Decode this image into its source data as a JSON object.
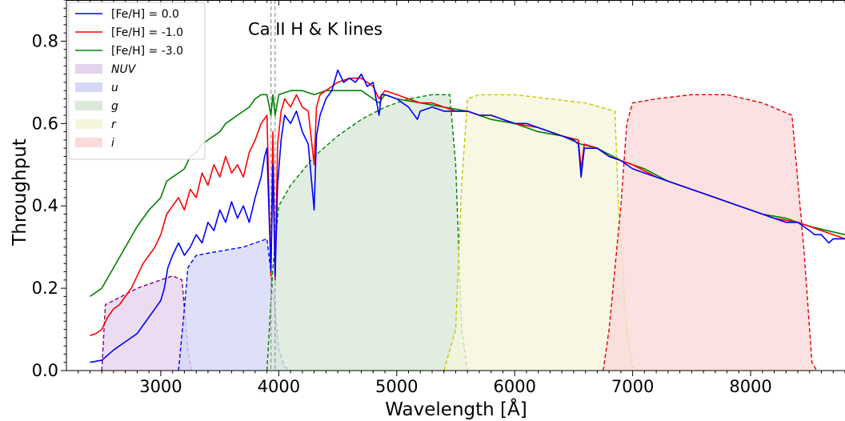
{
  "chart_data": {
    "type": "line",
    "xlabel": "Wavelength [Å]",
    "ylabel": "Throughput",
    "xlim": [
      2200,
      8800
    ],
    "ylim": [
      0.0,
      0.9
    ],
    "x_ticks": [
      "3000",
      "4000",
      "5000",
      "6000",
      "7000",
      "8000"
    ],
    "y_ticks": [
      "0.0",
      "0.2",
      "0.4",
      "0.6",
      "0.8"
    ],
    "grid": false,
    "legend_position": "top-left",
    "annotations": [
      {
        "text": "Ca II H & K lines",
        "x": 4300,
        "y": 0.815
      }
    ],
    "vlines": [
      3934,
      3969
    ],
    "series": [
      {
        "name": "[Fe/H] =  0.0",
        "color": "#0000ff",
        "points": [
          [
            2400,
            0.02
          ],
          [
            2500,
            0.025
          ],
          [
            2600,
            0.05
          ],
          [
            2700,
            0.07
          ],
          [
            2800,
            0.09
          ],
          [
            2850,
            0.11
          ],
          [
            2900,
            0.13
          ],
          [
            2950,
            0.15
          ],
          [
            3000,
            0.17
          ],
          [
            3030,
            0.2
          ],
          [
            3060,
            0.25
          ],
          [
            3100,
            0.28
          ],
          [
            3150,
            0.31
          ],
          [
            3200,
            0.28
          ],
          [
            3250,
            0.3
          ],
          [
            3300,
            0.33
          ],
          [
            3350,
            0.31
          ],
          [
            3400,
            0.36
          ],
          [
            3450,
            0.34
          ],
          [
            3500,
            0.39
          ],
          [
            3550,
            0.36
          ],
          [
            3600,
            0.41
          ],
          [
            3650,
            0.37
          ],
          [
            3700,
            0.4
          ],
          [
            3750,
            0.36
          ],
          [
            3800,
            0.42
          ],
          [
            3850,
            0.47
          ],
          [
            3880,
            0.52
          ],
          [
            3900,
            0.54
          ],
          [
            3934,
            0.24
          ],
          [
            3950,
            0.5
          ],
          [
            3969,
            0.23
          ],
          [
            3990,
            0.45
          ],
          [
            4020,
            0.56
          ],
          [
            4050,
            0.62
          ],
          [
            4100,
            0.6
          ],
          [
            4150,
            0.63
          ],
          [
            4200,
            0.58
          ],
          [
            4250,
            0.55
          ],
          [
            4300,
            0.39
          ],
          [
            4320,
            0.57
          ],
          [
            4350,
            0.62
          ],
          [
            4400,
            0.66
          ],
          [
            4450,
            0.68
          ],
          [
            4500,
            0.73
          ],
          [
            4550,
            0.7
          ],
          [
            4600,
            0.71
          ],
          [
            4650,
            0.7
          ],
          [
            4700,
            0.72
          ],
          [
            4750,
            0.69
          ],
          [
            4800,
            0.7
          ],
          [
            4850,
            0.62
          ],
          [
            4870,
            0.67
          ],
          [
            4900,
            0.67
          ],
          [
            5000,
            0.66
          ],
          [
            5100,
            0.64
          ],
          [
            5175,
            0.61
          ],
          [
            5200,
            0.63
          ],
          [
            5300,
            0.64
          ],
          [
            5400,
            0.63
          ],
          [
            5500,
            0.63
          ],
          [
            5600,
            0.63
          ],
          [
            5700,
            0.62
          ],
          [
            5800,
            0.62
          ],
          [
            5900,
            0.61
          ],
          [
            6000,
            0.6
          ],
          [
            6100,
            0.6
          ],
          [
            6200,
            0.59
          ],
          [
            6300,
            0.58
          ],
          [
            6400,
            0.57
          ],
          [
            6500,
            0.56
          ],
          [
            6540,
            0.55
          ],
          [
            6563,
            0.47
          ],
          [
            6590,
            0.54
          ],
          [
            6700,
            0.54
          ],
          [
            6800,
            0.52
          ],
          [
            6900,
            0.51
          ],
          [
            7000,
            0.49
          ],
          [
            7100,
            0.48
          ],
          [
            7200,
            0.47
          ],
          [
            7300,
            0.46
          ],
          [
            7400,
            0.45
          ],
          [
            7500,
            0.44
          ],
          [
            7600,
            0.43
          ],
          [
            7700,
            0.42
          ],
          [
            7800,
            0.41
          ],
          [
            7900,
            0.4
          ],
          [
            8000,
            0.39
          ],
          [
            8100,
            0.38
          ],
          [
            8200,
            0.37
          ],
          [
            8300,
            0.36
          ],
          [
            8400,
            0.36
          ],
          [
            8500,
            0.34
          ],
          [
            8542,
            0.33
          ],
          [
            8600,
            0.33
          ],
          [
            8662,
            0.31
          ],
          [
            8700,
            0.32
          ],
          [
            8800,
            0.32
          ]
        ]
      },
      {
        "name": "[Fe/H] = -1.0",
        "color": "#ff0000",
        "points": [
          [
            2400,
            0.085
          ],
          [
            2450,
            0.09
          ],
          [
            2500,
            0.1
          ],
          [
            2550,
            0.13
          ],
          [
            2600,
            0.15
          ],
          [
            2650,
            0.16
          ],
          [
            2700,
            0.18
          ],
          [
            2750,
            0.2
          ],
          [
            2800,
            0.23
          ],
          [
            2850,
            0.26
          ],
          [
            2900,
            0.28
          ],
          [
            2950,
            0.3
          ],
          [
            3000,
            0.33
          ],
          [
            3050,
            0.38
          ],
          [
            3100,
            0.4
          ],
          [
            3150,
            0.42
          ],
          [
            3200,
            0.39
          ],
          [
            3250,
            0.44
          ],
          [
            3300,
            0.42
          ],
          [
            3350,
            0.48
          ],
          [
            3400,
            0.45
          ],
          [
            3450,
            0.5
          ],
          [
            3500,
            0.47
          ],
          [
            3550,
            0.52
          ],
          [
            3600,
            0.48
          ],
          [
            3650,
            0.5
          ],
          [
            3700,
            0.47
          ],
          [
            3750,
            0.53
          ],
          [
            3800,
            0.56
          ],
          [
            3850,
            0.6
          ],
          [
            3900,
            0.62
          ],
          [
            3934,
            0.23
          ],
          [
            3950,
            0.58
          ],
          [
            3969,
            0.22
          ],
          [
            3990,
            0.55
          ],
          [
            4020,
            0.63
          ],
          [
            4050,
            0.66
          ],
          [
            4100,
            0.64
          ],
          [
            4150,
            0.67
          ],
          [
            4200,
            0.64
          ],
          [
            4250,
            0.63
          ],
          [
            4300,
            0.5
          ],
          [
            4320,
            0.64
          ],
          [
            4350,
            0.67
          ],
          [
            4400,
            0.68
          ],
          [
            4500,
            0.7
          ],
          [
            4600,
            0.71
          ],
          [
            4700,
            0.71
          ],
          [
            4800,
            0.69
          ],
          [
            4850,
            0.66
          ],
          [
            4900,
            0.68
          ],
          [
            5000,
            0.67
          ],
          [
            5100,
            0.66
          ],
          [
            5200,
            0.65
          ],
          [
            5300,
            0.65
          ],
          [
            5400,
            0.64
          ],
          [
            5500,
            0.63
          ],
          [
            5600,
            0.63
          ],
          [
            5700,
            0.62
          ],
          [
            5800,
            0.62
          ],
          [
            5900,
            0.61
          ],
          [
            6000,
            0.6
          ],
          [
            6200,
            0.59
          ],
          [
            6400,
            0.57
          ],
          [
            6540,
            0.56
          ],
          [
            6563,
            0.49
          ],
          [
            6590,
            0.55
          ],
          [
            6700,
            0.54
          ],
          [
            6800,
            0.52
          ],
          [
            7000,
            0.5
          ],
          [
            7200,
            0.47
          ],
          [
            7400,
            0.45
          ],
          [
            7600,
            0.43
          ],
          [
            7800,
            0.41
          ],
          [
            8000,
            0.39
          ],
          [
            8200,
            0.37
          ],
          [
            8400,
            0.36
          ],
          [
            8600,
            0.34
          ],
          [
            8800,
            0.32
          ]
        ]
      },
      {
        "name": "[Fe/H] = -3.0",
        "color": "#008000",
        "points": [
          [
            2400,
            0.18
          ],
          [
            2500,
            0.2
          ],
          [
            2600,
            0.25
          ],
          [
            2700,
            0.3
          ],
          [
            2800,
            0.35
          ],
          [
            2900,
            0.39
          ],
          [
            3000,
            0.42
          ],
          [
            3050,
            0.46
          ],
          [
            3100,
            0.47
          ],
          [
            3150,
            0.48
          ],
          [
            3200,
            0.49
          ],
          [
            3250,
            0.52
          ],
          [
            3300,
            0.53
          ],
          [
            3350,
            0.55
          ],
          [
            3400,
            0.56
          ],
          [
            3450,
            0.57
          ],
          [
            3500,
            0.58
          ],
          [
            3550,
            0.6
          ],
          [
            3600,
            0.61
          ],
          [
            3650,
            0.62
          ],
          [
            3700,
            0.63
          ],
          [
            3750,
            0.64
          ],
          [
            3800,
            0.66
          ],
          [
            3850,
            0.67
          ],
          [
            3900,
            0.67
          ],
          [
            3934,
            0.62
          ],
          [
            3950,
            0.67
          ],
          [
            3969,
            0.62
          ],
          [
            4000,
            0.67
          ],
          [
            4100,
            0.68
          ],
          [
            4200,
            0.68
          ],
          [
            4300,
            0.67
          ],
          [
            4400,
            0.68
          ],
          [
            4500,
            0.68
          ],
          [
            4700,
            0.68
          ],
          [
            4850,
            0.65
          ],
          [
            4900,
            0.67
          ],
          [
            5000,
            0.66
          ],
          [
            5200,
            0.65
          ],
          [
            5400,
            0.64
          ],
          [
            5600,
            0.63
          ],
          [
            5800,
            0.61
          ],
          [
            6000,
            0.6
          ],
          [
            6200,
            0.58
          ],
          [
            6400,
            0.57
          ],
          [
            6563,
            0.55
          ],
          [
            6700,
            0.54
          ],
          [
            6900,
            0.51
          ],
          [
            7100,
            0.49
          ],
          [
            7300,
            0.46
          ],
          [
            7500,
            0.44
          ],
          [
            7700,
            0.42
          ],
          [
            7900,
            0.4
          ],
          [
            8100,
            0.38
          ],
          [
            8300,
            0.37
          ],
          [
            8500,
            0.35
          ],
          [
            8800,
            0.33
          ]
        ]
      }
    ],
    "filters": [
      {
        "name": "NUV",
        "color": "#800080",
        "fill": "#e6d3ee",
        "points": [
          [
            2500,
            0.0
          ],
          [
            2530,
            0.16
          ],
          [
            2600,
            0.17
          ],
          [
            2800,
            0.2
          ],
          [
            3000,
            0.22
          ],
          [
            3100,
            0.23
          ],
          [
            3180,
            0.22
          ],
          [
            3230,
            0.05
          ],
          [
            3260,
            0.0
          ]
        ]
      },
      {
        "name": "u",
        "color": "#0000ff",
        "fill": "#d4d8f6",
        "points": [
          [
            3150,
            0.0
          ],
          [
            3200,
            0.15
          ],
          [
            3230,
            0.25
          ],
          [
            3300,
            0.28
          ],
          [
            3500,
            0.29
          ],
          [
            3700,
            0.3
          ],
          [
            3800,
            0.31
          ],
          [
            3900,
            0.32
          ],
          [
            3950,
            0.2
          ],
          [
            4000,
            0.05
          ],
          [
            4050,
            0.01
          ],
          [
            4100,
            0.0
          ]
        ]
      },
      {
        "name": "g",
        "color": "#008000",
        "fill": "#dae9d9",
        "points": [
          [
            3900,
            0.0
          ],
          [
            3950,
            0.25
          ],
          [
            4000,
            0.4
          ],
          [
            4100,
            0.45
          ],
          [
            4300,
            0.52
          ],
          [
            4500,
            0.57
          ],
          [
            4700,
            0.61
          ],
          [
            4900,
            0.64
          ],
          [
            5100,
            0.66
          ],
          [
            5300,
            0.67
          ],
          [
            5450,
            0.67
          ],
          [
            5500,
            0.5
          ],
          [
            5550,
            0.1
          ],
          [
            5600,
            0.0
          ]
        ]
      },
      {
        "name": "r",
        "color": "#c8c800",
        "fill": "#f5f5dc",
        "points": [
          [
            5400,
            0.0
          ],
          [
            5500,
            0.1
          ],
          [
            5550,
            0.45
          ],
          [
            5600,
            0.66
          ],
          [
            5700,
            0.67
          ],
          [
            6000,
            0.67
          ],
          [
            6300,
            0.66
          ],
          [
            6600,
            0.65
          ],
          [
            6850,
            0.63
          ],
          [
            6880,
            0.4
          ],
          [
            6950,
            0.1
          ],
          [
            7000,
            0.01
          ],
          [
            7050,
            0.0
          ]
        ]
      },
      {
        "name": "i",
        "color": "#e00000",
        "fill": "#fadada",
        "points": [
          [
            6750,
            0.0
          ],
          [
            6800,
            0.1
          ],
          [
            6900,
            0.4
          ],
          [
            6950,
            0.6
          ],
          [
            7000,
            0.65
          ],
          [
            7200,
            0.66
          ],
          [
            7500,
            0.67
          ],
          [
            7800,
            0.67
          ],
          [
            8100,
            0.65
          ],
          [
            8350,
            0.62
          ],
          [
            8450,
            0.3
          ],
          [
            8520,
            0.02
          ],
          [
            8560,
            0.0
          ]
        ]
      }
    ]
  }
}
